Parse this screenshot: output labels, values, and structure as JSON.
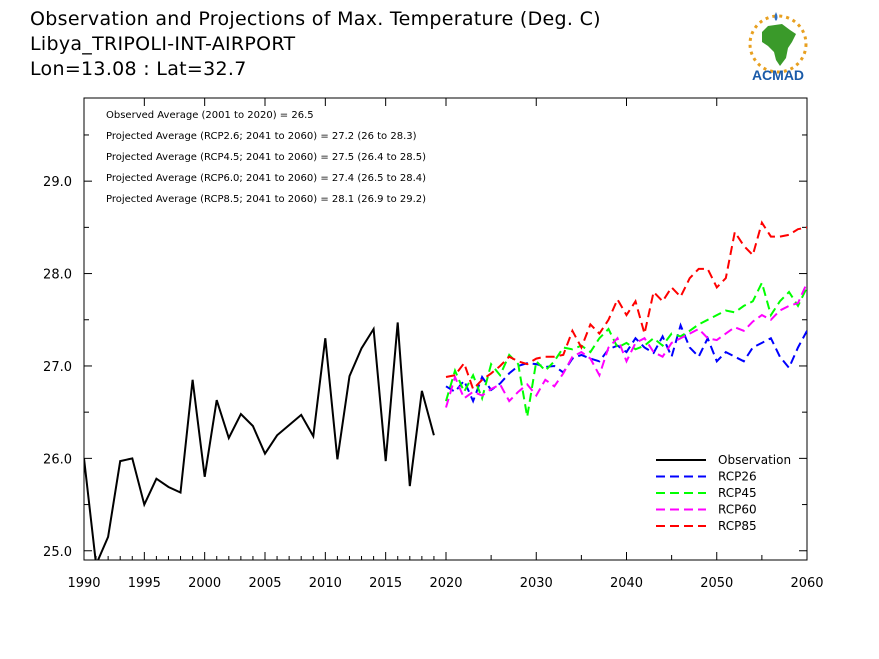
{
  "title": {
    "line1": "Observation and Projections of Max. Temperature (Deg. C)",
    "line2": "Libya_TRIPOLI-INT-AIRPORT",
    "line3": "Lon=13.08 : Lat=32.7"
  },
  "logo_text": "ACMAD",
  "annotations": [
    "Observed Average (2001 to 2020) = 26.5",
    "Projected Average (RCP2.6; 2041 to 2060) = 27.2 (26 to 28.3)",
    "Projected Average (RCP4.5; 2041 to 2060) = 27.5 (26.4 to 28.5)",
    "Projected Average (RCP6.0; 2041 to 2060) = 27.4 (26.5 to 28.4)",
    "Projected Average (RCP8.5; 2041 to 2060) = 28.1 (26.9 to 29.2)"
  ],
  "chart_data": {
    "type": "line",
    "xlim": [
      1990,
      2060
    ],
    "ylim": [
      24.9,
      29.9
    ],
    "x_ticks": [
      1990,
      1995,
      2000,
      2005,
      2010,
      2015,
      2020,
      2030,
      2040,
      2050,
      2060
    ],
    "y_ticks": [
      25.0,
      26.0,
      27.0,
      28.0,
      29.0
    ],
    "y_tick_labels": [
      "25.0",
      "26.0",
      "27.0",
      "28.0",
      "29.0"
    ],
    "legend_position": "bottom-right",
    "series": [
      {
        "name": "Observation",
        "color": "#000000",
        "dashed": false,
        "x": [
          1990,
          1991,
          1992,
          1993,
          1994,
          1995,
          1996,
          1997,
          1998,
          1999,
          2000,
          2001,
          2002,
          2003,
          2004,
          2005,
          2006,
          2007,
          2008,
          2009,
          2010,
          2011,
          2012,
          2013,
          2014,
          2015,
          2016,
          2017,
          2018,
          2019
        ],
        "y": [
          26.0,
          24.85,
          25.15,
          25.97,
          26.0,
          25.5,
          25.78,
          25.69,
          25.63,
          26.85,
          25.8,
          26.63,
          26.22,
          26.48,
          26.35,
          26.05,
          26.25,
          26.36,
          26.47,
          26.24,
          27.3,
          25.99,
          26.89,
          27.19,
          27.4,
          25.97,
          27.47,
          25.7,
          26.73,
          26.25
        ]
      },
      {
        "name": "RCP26",
        "color": "#0000ff",
        "dashed": true,
        "x": [
          2020,
          2021,
          2022,
          2023,
          2024,
          2025,
          2026,
          2027,
          2028,
          2029,
          2030,
          2031,
          2032,
          2033,
          2034,
          2035,
          2036,
          2037,
          2038,
          2039,
          2040,
          2041,
          2042,
          2043,
          2044,
          2045,
          2046,
          2047,
          2048,
          2049,
          2050,
          2051,
          2052,
          2053,
          2054,
          2055,
          2056,
          2057,
          2058,
          2059,
          2060
        ],
        "y": [
          26.78,
          26.72,
          26.84,
          26.62,
          26.88,
          26.74,
          26.81,
          26.92,
          27.0,
          27.03,
          27.02,
          26.99,
          27.0,
          26.93,
          27.08,
          27.12,
          27.08,
          27.05,
          27.18,
          27.22,
          27.15,
          27.3,
          27.2,
          27.14,
          27.32,
          27.1,
          27.44,
          27.2,
          27.1,
          27.3,
          27.05,
          27.15,
          27.1,
          27.05,
          27.2,
          27.25,
          27.3,
          27.1,
          26.98,
          27.2,
          27.38
        ]
      },
      {
        "name": "RCP45",
        "color": "#00ff00",
        "dashed": true,
        "x": [
          2020,
          2021,
          2022,
          2023,
          2024,
          2025,
          2026,
          2027,
          2028,
          2029,
          2030,
          2031,
          2032,
          2033,
          2034,
          2035,
          2036,
          2037,
          2038,
          2039,
          2040,
          2041,
          2042,
          2043,
          2044,
          2045,
          2046,
          2047,
          2048,
          2049,
          2050,
          2051,
          2052,
          2053,
          2054,
          2055,
          2056,
          2057,
          2058,
          2059,
          2060
        ],
        "y": [
          26.62,
          26.95,
          26.72,
          26.9,
          26.65,
          27.02,
          26.9,
          27.12,
          27.02,
          26.45,
          27.05,
          26.95,
          27.05,
          27.2,
          27.18,
          27.22,
          27.15,
          27.3,
          27.4,
          27.2,
          27.25,
          27.18,
          27.22,
          27.3,
          27.22,
          27.35,
          27.32,
          27.38,
          27.45,
          27.5,
          27.55,
          27.6,
          27.58,
          27.65,
          27.7,
          27.9,
          27.55,
          27.7,
          27.8,
          27.65,
          27.85
        ]
      },
      {
        "name": "RCP60",
        "color": "#ff00ff",
        "dashed": true,
        "x": [
          2020,
          2021,
          2022,
          2023,
          2024,
          2025,
          2026,
          2027,
          2028,
          2029,
          2030,
          2031,
          2032,
          2033,
          2034,
          2035,
          2036,
          2037,
          2038,
          2039,
          2040,
          2041,
          2042,
          2043,
          2044,
          2045,
          2046,
          2047,
          2048,
          2049,
          2050,
          2051,
          2052,
          2053,
          2054,
          2055,
          2056,
          2057,
          2058,
          2059,
          2060
        ],
        "y": [
          26.55,
          26.88,
          26.65,
          26.72,
          26.68,
          26.75,
          26.8,
          26.62,
          26.72,
          26.8,
          26.68,
          26.85,
          26.78,
          26.92,
          27.1,
          27.15,
          27.08,
          26.9,
          27.2,
          27.3,
          27.05,
          27.25,
          27.3,
          27.15,
          27.1,
          27.25,
          27.3,
          27.35,
          27.4,
          27.3,
          27.28,
          27.35,
          27.42,
          27.38,
          27.48,
          27.55,
          27.5,
          27.6,
          27.65,
          27.68,
          27.9
        ]
      },
      {
        "name": "RCP85",
        "color": "#ff0000",
        "dashed": true,
        "x": [
          2020,
          2021,
          2022,
          2023,
          2024,
          2025,
          2026,
          2027,
          2028,
          2029,
          2030,
          2031,
          2032,
          2033,
          2034,
          2035,
          2036,
          2037,
          2038,
          2039,
          2040,
          2041,
          2042,
          2043,
          2044,
          2045,
          2046,
          2047,
          2048,
          2049,
          2050,
          2051,
          2052,
          2053,
          2054,
          2055,
          2056,
          2057,
          2058,
          2059,
          2060
        ],
        "y": [
          26.88,
          26.9,
          27.03,
          26.75,
          26.85,
          26.92,
          27.0,
          27.1,
          27.05,
          27.02,
          27.08,
          27.1,
          27.1,
          27.12,
          27.38,
          27.2,
          27.45,
          27.35,
          27.5,
          27.72,
          27.55,
          27.7,
          27.35,
          27.8,
          27.7,
          27.85,
          27.75,
          27.95,
          28.05,
          28.05,
          27.85,
          27.95,
          28.45,
          28.3,
          28.2,
          28.55,
          28.4,
          28.4,
          28.42,
          28.48,
          28.5
        ]
      }
    ]
  }
}
